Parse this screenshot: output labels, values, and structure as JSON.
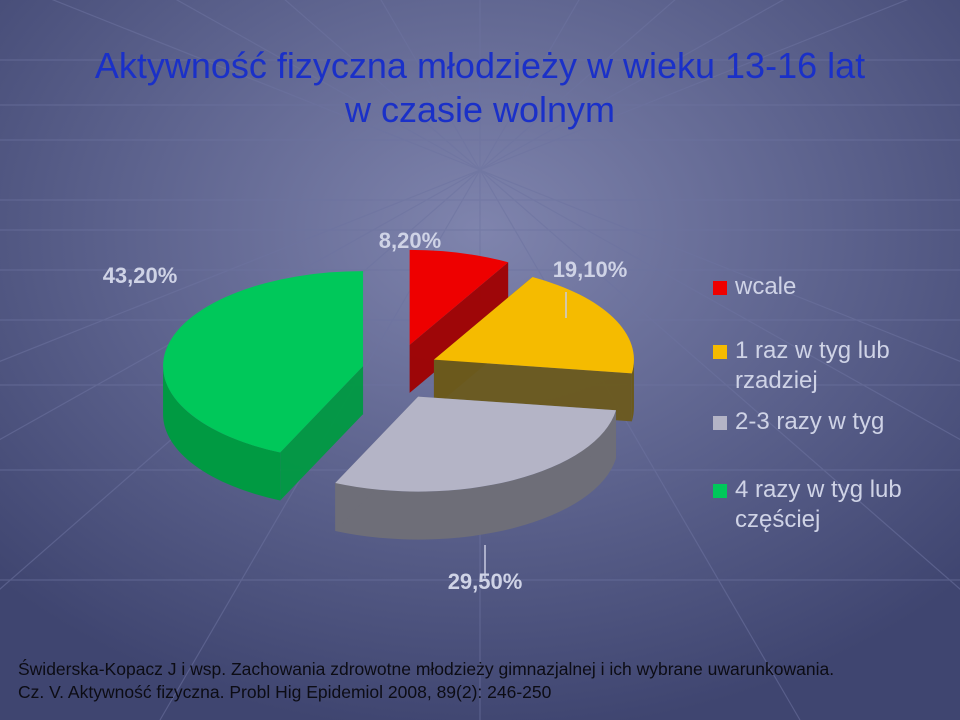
{
  "title": {
    "line1": "Aktywność fizyczna młodzieży w wieku 13-16 lat",
    "line2": "w czasie wolnym"
  },
  "chart_data": {
    "type": "pie",
    "style": "3d-exploded",
    "series": [
      {
        "label": "wcale",
        "value": 8.2,
        "display": "8,20%",
        "color": "#ee0000",
        "side_color": "#a00000"
      },
      {
        "label": "1 raz w tyg lub rzadziej",
        "value": 19.1,
        "display": "19,10%",
        "color": "#f5bb00",
        "side_color": "#6b5a1c"
      },
      {
        "label": "2-3 razy w tyg",
        "value": 29.5,
        "display": "29,50%",
        "color": "#b4b4c6",
        "side_color": "#6e6e78"
      },
      {
        "label": "4 razy w tyg lub częściej",
        "value": 43.2,
        "display": "43,20%",
        "color": "#00c85a",
        "side_color": "#009a42"
      }
    ],
    "legend_position": "right"
  },
  "source": {
    "line1": "Świderska-Kopacz J i wsp. Zachowania zdrowotne młodzieży gimnazjalnej i ich wybrane uwarunkowania.",
    "line2": "Cz. V. Aktywność fizyczna. Probl Hig Epidemiol 2008, 89(2): 246-250"
  },
  "colors": {
    "background": "#4f5580",
    "title": "#1a30c8",
    "text_light": "#cfd3e6"
  }
}
